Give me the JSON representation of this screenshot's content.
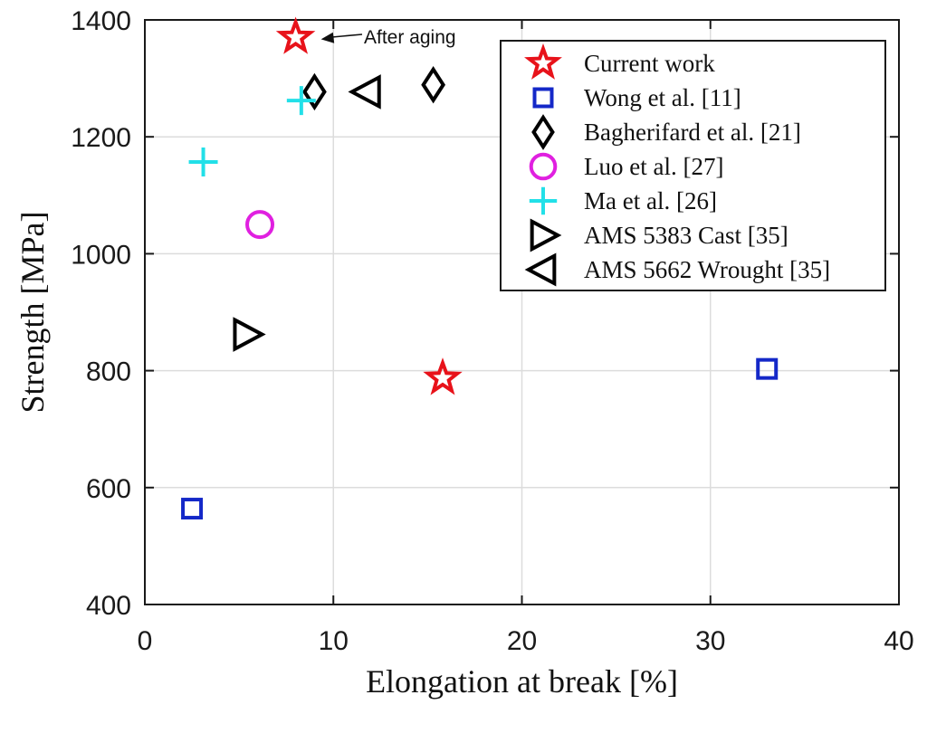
{
  "chart_data": {
    "type": "scatter",
    "xlabel": "Elongation at break [%]",
    "ylabel": "Strength [MPa]",
    "xlim": [
      0,
      40
    ],
    "ylim": [
      400,
      1400
    ],
    "xticks": [
      0,
      10,
      20,
      30,
      40
    ],
    "yticks": [
      400,
      600,
      800,
      1000,
      1200,
      1400
    ],
    "grid": true,
    "legend_position": "top-right",
    "annotation": {
      "text": "After aging",
      "points_to": {
        "x": 8,
        "y": 1370
      }
    },
    "series": [
      {
        "name": "Current work",
        "marker": "star",
        "color": "#e8121a",
        "points": [
          {
            "x": 8,
            "y": 1370
          },
          {
            "x": 15.8,
            "y": 787
          }
        ]
      },
      {
        "name": "Wong et al. [11]",
        "marker": "square",
        "color": "#1428c8",
        "points": [
          {
            "x": 2.5,
            "y": 564
          },
          {
            "x": 33,
            "y": 803
          }
        ]
      },
      {
        "name": "Bagherifard et al. [21]",
        "marker": "diamond",
        "color": "#000000",
        "points": [
          {
            "x": 9,
            "y": 1277
          },
          {
            "x": 15.3,
            "y": 1289
          }
        ]
      },
      {
        "name": "Luo et al. [27]",
        "marker": "circle",
        "color": "#e020e0",
        "points": [
          {
            "x": 6.1,
            "y": 1050
          }
        ]
      },
      {
        "name": "Ma et al. [26]",
        "marker": "plus",
        "color": "#22e0e8",
        "points": [
          {
            "x": 3.1,
            "y": 1157
          },
          {
            "x": 8.3,
            "y": 1262
          }
        ]
      },
      {
        "name": "AMS 5383 Cast [35]",
        "marker": "triangle-right",
        "color": "#000000",
        "points": [
          {
            "x": 5.4,
            "y": 862
          }
        ]
      },
      {
        "name": "AMS 5662 Wrought [35]",
        "marker": "triangle-left",
        "color": "#000000",
        "points": [
          {
            "x": 11.8,
            "y": 1277
          }
        ]
      }
    ]
  }
}
